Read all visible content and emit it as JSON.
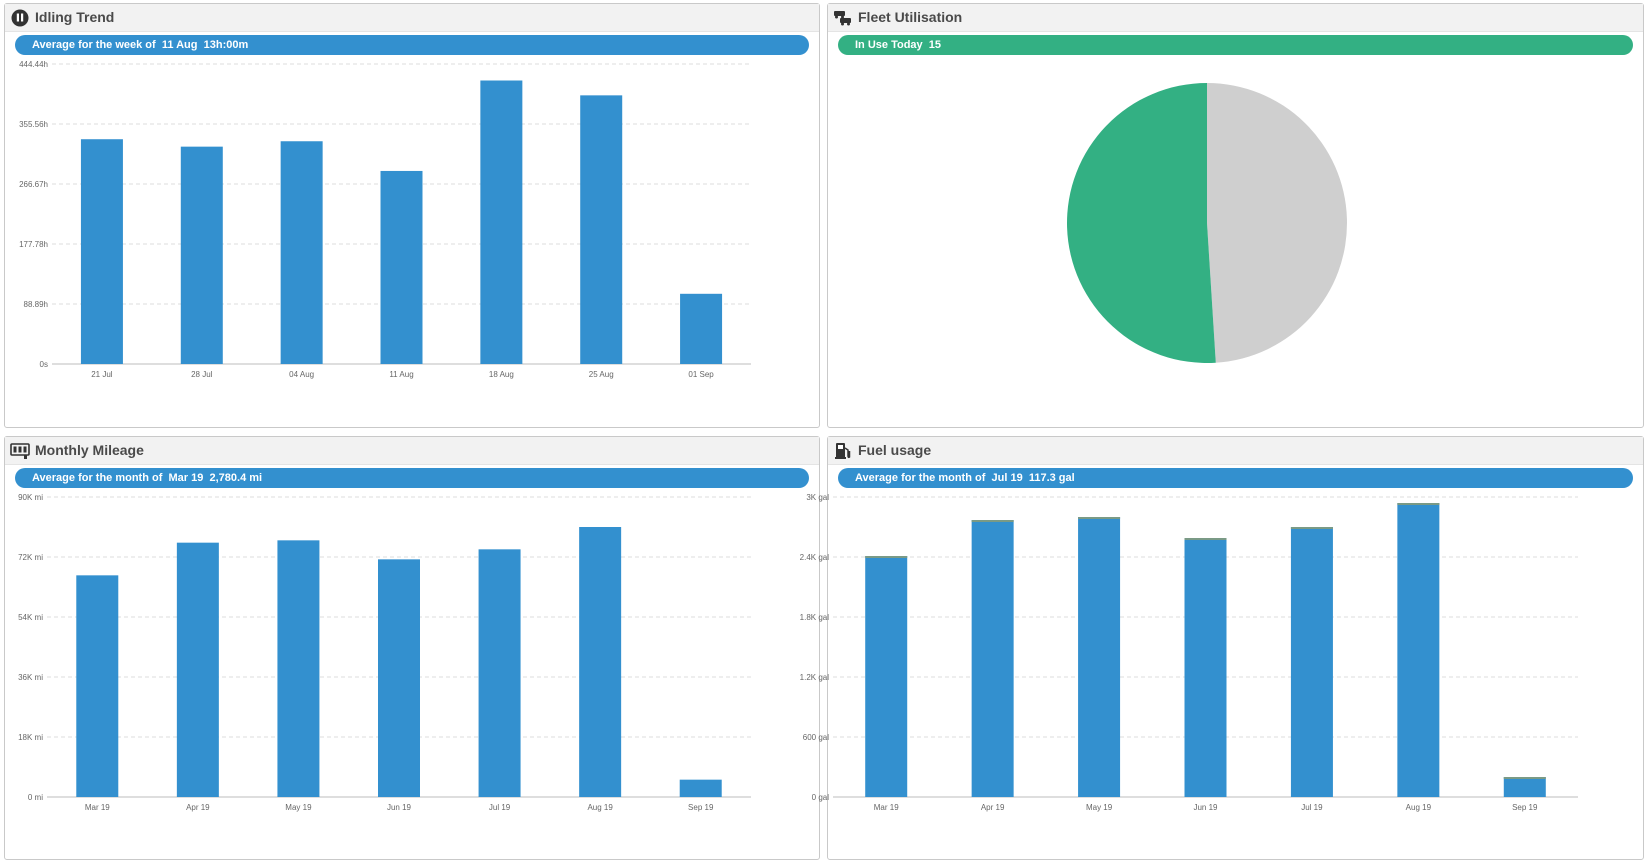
{
  "colors": {
    "bar": "#3390cf",
    "pill_blue": "#3390cf",
    "pill_green": "#33b083",
    "pie_in_use": "#33b083",
    "pie_not_in_use": "#cfcfcf",
    "header_bg": "#f2f2f2",
    "fuel_bar_cap": "#7a9a86"
  },
  "panels": {
    "idling": {
      "title": "Idling Trend",
      "icon": "pause-circle-icon",
      "summary_label": "Average for the week of",
      "summary_period": "11 Aug",
      "summary_value": "13h:00m"
    },
    "fleet": {
      "title": "Fleet Utilisation",
      "icon": "vehicles-icon",
      "summary_label": "In Use Today",
      "summary_value": "15"
    },
    "mileage": {
      "title": "Monthly Mileage",
      "icon": "odometer-icon",
      "summary_label": "Average for the month of",
      "summary_period": "Mar 19",
      "summary_value": "2,780.4 mi"
    },
    "fuel": {
      "title": "Fuel usage",
      "icon": "fuel-pump-icon",
      "summary_label": "Average for the month of",
      "summary_period": "Jul 19",
      "summary_value": "117.3 gal"
    }
  },
  "chart_data": [
    {
      "id": "idling",
      "type": "bar",
      "categories": [
        "21 Jul",
        "28 Jul",
        "04 Aug",
        "11 Aug",
        "18 Aug",
        "25 Aug",
        "01 Sep"
      ],
      "values": [
        333,
        322,
        330,
        286,
        420,
        398,
        104
      ],
      "yticks": [
        0,
        88.89,
        177.78,
        266.67,
        355.56,
        444.44
      ],
      "ytick_labels": [
        "0s",
        "88.89h",
        "177.78h",
        "266.67h",
        "355.56h",
        "444.44h"
      ],
      "ylim": [
        0,
        444.44
      ],
      "grid": true
    },
    {
      "id": "fleet",
      "type": "pie",
      "slices": [
        {
          "value": 49,
          "color": "#cfcfcf"
        },
        {
          "value": 51,
          "color": "#33b083"
        }
      ]
    },
    {
      "id": "mileage",
      "type": "bar",
      "categories": [
        "Mar 19",
        "Apr 19",
        "May 19",
        "Jun 19",
        "Jul 19",
        "Aug 19",
        "Sep 19"
      ],
      "values": [
        66500,
        76300,
        77000,
        71300,
        74300,
        81000,
        5200
      ],
      "yticks": [
        0,
        18000,
        36000,
        54000,
        72000,
        90000
      ],
      "ytick_labels": [
        "0 mi",
        "18K mi",
        "36K mi",
        "54K mi",
        "72K mi",
        "90K mi"
      ],
      "ylim": [
        0,
        90000
      ],
      "grid": true
    },
    {
      "id": "fuel",
      "type": "bar",
      "categories": [
        "Mar 19",
        "Apr 19",
        "May 19",
        "Jun 19",
        "Jul 19",
        "Aug 19",
        "Sep 19"
      ],
      "values": [
        2410,
        2770,
        2800,
        2590,
        2700,
        2940,
        200
      ],
      "yticks": [
        0,
        600,
        1200,
        1800,
        2400,
        3000
      ],
      "ytick_labels": [
        "0 gal",
        "600 gal",
        "1.2K gal",
        "1.8K gal",
        "2.4K gal",
        "3K gal"
      ],
      "ylim": [
        0,
        3000
      ],
      "grid": true
    }
  ]
}
